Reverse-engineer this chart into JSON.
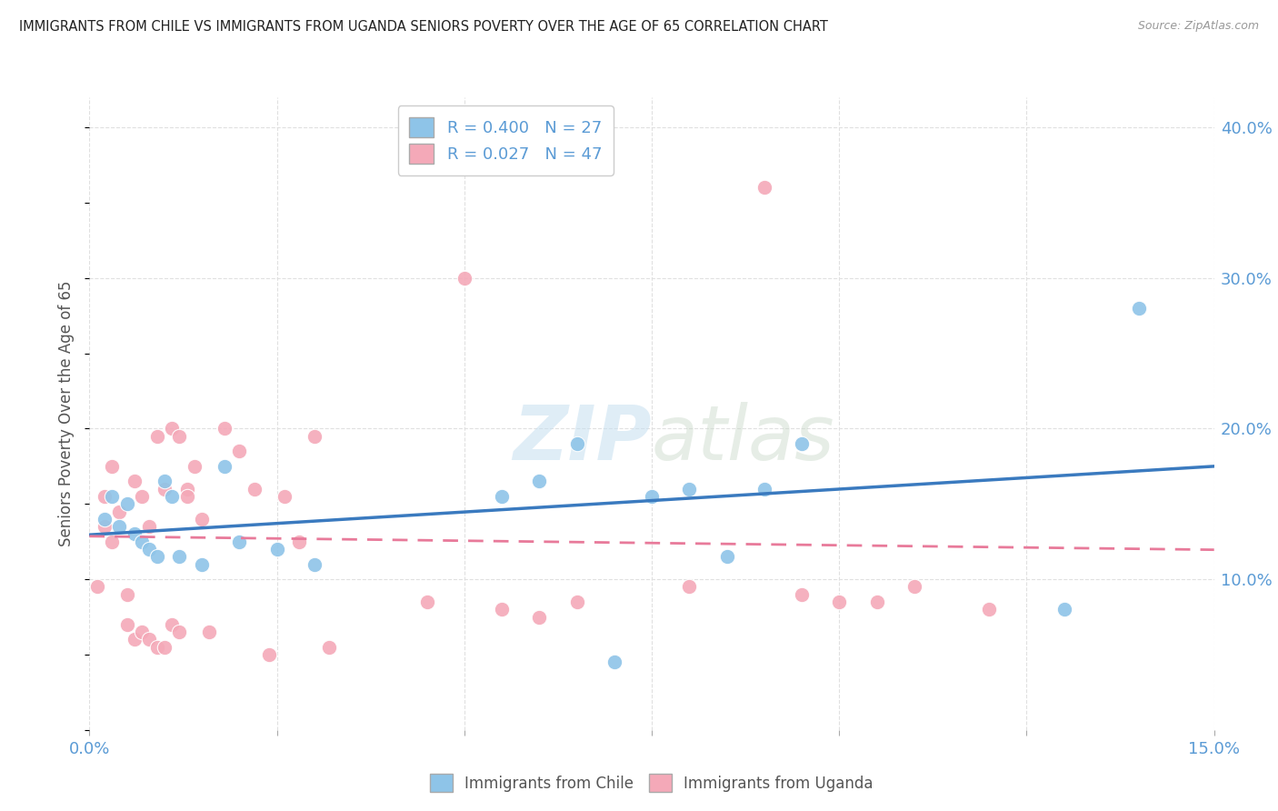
{
  "title": "IMMIGRANTS FROM CHILE VS IMMIGRANTS FROM UGANDA SENIORS POVERTY OVER THE AGE OF 65 CORRELATION CHART",
  "source": "Source: ZipAtlas.com",
  "ylabel": "Seniors Poverty Over the Age of 65",
  "xlim": [
    0.0,
    0.15
  ],
  "ylim": [
    0.0,
    0.42
  ],
  "xticks": [
    0.0,
    0.025,
    0.05,
    0.075,
    0.1,
    0.125,
    0.15
  ],
  "xticklabels": [
    "0.0%",
    "",
    "",
    "",
    "",
    "",
    "15.0%"
  ],
  "yticks_right": [
    0.1,
    0.2,
    0.3,
    0.4
  ],
  "ytick_right_labels": [
    "10.0%",
    "20.0%",
    "30.0%",
    "40.0%"
  ],
  "chile_color": "#8ec4e8",
  "chile_color_dark": "#3a7abf",
  "uganda_color": "#f4a9b8",
  "uganda_color_dark": "#e87a9a",
  "chile_R": 0.4,
  "chile_N": 27,
  "uganda_R": 0.027,
  "uganda_N": 47,
  "watermark_zip": "ZIP",
  "watermark_atlas": "atlas",
  "background_color": "#ffffff",
  "grid_color": "#e0e0e0",
  "chile_scatter_x": [
    0.002,
    0.003,
    0.004,
    0.005,
    0.006,
    0.007,
    0.008,
    0.009,
    0.01,
    0.011,
    0.012,
    0.015,
    0.018,
    0.02,
    0.025,
    0.03,
    0.055,
    0.06,
    0.065,
    0.07,
    0.075,
    0.08,
    0.085,
    0.09,
    0.095,
    0.13,
    0.14
  ],
  "chile_scatter_y": [
    0.14,
    0.155,
    0.135,
    0.15,
    0.13,
    0.125,
    0.12,
    0.115,
    0.165,
    0.155,
    0.115,
    0.11,
    0.175,
    0.125,
    0.12,
    0.11,
    0.155,
    0.165,
    0.19,
    0.045,
    0.155,
    0.16,
    0.115,
    0.16,
    0.19,
    0.08,
    0.28
  ],
  "uganda_scatter_x": [
    0.001,
    0.002,
    0.002,
    0.003,
    0.003,
    0.004,
    0.005,
    0.005,
    0.006,
    0.006,
    0.007,
    0.007,
    0.008,
    0.008,
    0.009,
    0.009,
    0.01,
    0.01,
    0.011,
    0.011,
    0.012,
    0.012,
    0.013,
    0.013,
    0.014,
    0.015,
    0.016,
    0.018,
    0.02,
    0.022,
    0.024,
    0.026,
    0.028,
    0.03,
    0.032,
    0.045,
    0.05,
    0.055,
    0.06,
    0.065,
    0.08,
    0.09,
    0.095,
    0.1,
    0.105,
    0.11,
    0.12
  ],
  "uganda_scatter_y": [
    0.095,
    0.135,
    0.155,
    0.125,
    0.175,
    0.145,
    0.07,
    0.09,
    0.06,
    0.165,
    0.065,
    0.155,
    0.06,
    0.135,
    0.055,
    0.195,
    0.055,
    0.16,
    0.07,
    0.2,
    0.065,
    0.195,
    0.16,
    0.155,
    0.175,
    0.14,
    0.065,
    0.2,
    0.185,
    0.16,
    0.05,
    0.155,
    0.125,
    0.195,
    0.055,
    0.085,
    0.3,
    0.08,
    0.075,
    0.085,
    0.095,
    0.36,
    0.09,
    0.085,
    0.085,
    0.095,
    0.08
  ]
}
